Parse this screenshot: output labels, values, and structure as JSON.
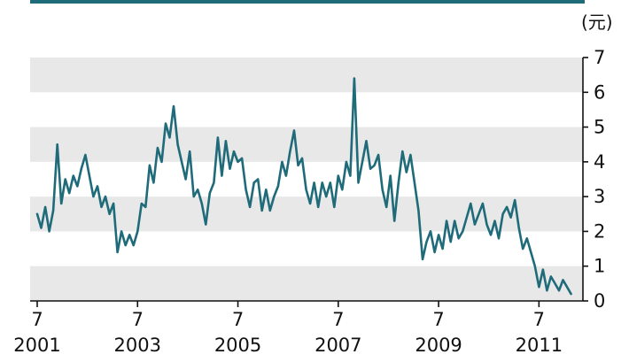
{
  "chart_data": {
    "type": "line",
    "unit": "(元)",
    "ylim": [
      0,
      7
    ],
    "y_ticks": [
      0,
      1,
      2,
      3,
      4,
      5,
      6,
      7
    ],
    "x_range": [
      2001.5,
      2012.2
    ],
    "x_ticks": [
      {
        "month": "7",
        "year": "2001",
        "x": 2001.5
      },
      {
        "month": "7",
        "year": "2003",
        "x": 2003.5
      },
      {
        "month": "7",
        "year": "2005",
        "x": 2005.5
      },
      {
        "month": "7",
        "year": "2007",
        "x": 2007.5
      },
      {
        "month": "7",
        "year": "2009",
        "x": 2009.5
      },
      {
        "month": "7",
        "year": "2011",
        "x": 2011.5
      }
    ],
    "grid": "alternating horizontal bands",
    "colors": {
      "line": "#1f6b7a",
      "band": "#e8e8e8",
      "top_rule": "#1f6b7a",
      "axis": "#111111"
    },
    "series": [
      {
        "x": [
          2001.5,
          2001.58,
          2001.66,
          2001.74,
          2001.82,
          2001.9,
          2001.98,
          2002.06,
          2002.14,
          2002.22,
          2002.3,
          2002.38,
          2002.46,
          2002.54,
          2002.62,
          2002.7,
          2002.78,
          2002.86,
          2002.94,
          2003.02,
          2003.1,
          2003.18,
          2003.26,
          2003.34,
          2003.42,
          2003.5,
          2003.58,
          2003.66,
          2003.74,
          2003.82,
          2003.9,
          2003.98,
          2004.06,
          2004.14,
          2004.22,
          2004.3,
          2004.38,
          2004.46,
          2004.54,
          2004.62,
          2004.7,
          2004.78,
          2004.86,
          2004.94,
          2005.02,
          2005.1,
          2005.18,
          2005.26,
          2005.34,
          2005.42,
          2005.5,
          2005.58,
          2005.66,
          2005.74,
          2005.82,
          2005.9,
          2005.98,
          2006.06,
          2006.14,
          2006.22,
          2006.3,
          2006.38,
          2006.46,
          2006.54,
          2006.62,
          2006.7,
          2006.78,
          2006.86,
          2006.94,
          2007.02,
          2007.1,
          2007.18,
          2007.26,
          2007.34,
          2007.42,
          2007.5,
          2007.58,
          2007.66,
          2007.74,
          2007.82,
          2007.9,
          2007.98,
          2008.06,
          2008.14,
          2008.22,
          2008.3,
          2008.38,
          2008.46,
          2008.54,
          2008.62,
          2008.7,
          2008.78,
          2008.86,
          2008.94,
          2009.02,
          2009.1,
          2009.18,
          2009.26,
          2009.34,
          2009.42,
          2009.5,
          2009.58,
          2009.66,
          2009.74,
          2009.82,
          2009.9,
          2009.98,
          2010.06,
          2010.14,
          2010.22,
          2010.3,
          2010.38,
          2010.46,
          2010.54,
          2010.62,
          2010.7,
          2010.78,
          2010.86,
          2010.94,
          2011.02,
          2011.1,
          2011.18,
          2011.26,
          2011.34,
          2011.42,
          2011.5,
          2011.58,
          2011.66,
          2011.74,
          2011.82,
          2011.9,
          2011.98,
          2012.06,
          2012.14
        ],
        "values": [
          2.5,
          2.1,
          2.7,
          2.0,
          2.6,
          4.5,
          2.8,
          3.5,
          3.1,
          3.6,
          3.3,
          3.8,
          4.2,
          3.6,
          3.0,
          3.3,
          2.7,
          3.0,
          2.5,
          2.8,
          1.4,
          2.0,
          1.6,
          1.9,
          1.6,
          2.0,
          2.8,
          2.7,
          3.9,
          3.4,
          4.4,
          4.0,
          5.1,
          4.7,
          5.6,
          4.5,
          4.0,
          3.5,
          4.3,
          3.0,
          3.2,
          2.8,
          2.2,
          3.1,
          3.4,
          4.7,
          3.6,
          4.6,
          3.8,
          4.3,
          4.0,
          4.1,
          3.2,
          2.7,
          3.4,
          3.5,
          2.6,
          3.2,
          2.6,
          3.0,
          3.3,
          4.0,
          3.6,
          4.3,
          4.9,
          3.9,
          4.1,
          3.2,
          2.8,
          3.4,
          2.7,
          3.4,
          3.0,
          3.4,
          2.7,
          3.6,
          3.2,
          4.0,
          3.6,
          6.4,
          3.4,
          4.0,
          4.6,
          3.8,
          3.9,
          4.2,
          3.2,
          2.7,
          3.6,
          2.3,
          3.4,
          4.3,
          3.7,
          4.2,
          3.4,
          2.6,
          1.2,
          1.7,
          2.0,
          1.4,
          1.9,
          1.5,
          2.3,
          1.7,
          2.3,
          1.8,
          2.0,
          2.4,
          2.8,
          2.2,
          2.5,
          2.8,
          2.2,
          1.9,
          2.3,
          1.8,
          2.5,
          2.7,
          2.4,
          2.9,
          2.1,
          1.5,
          1.8,
          1.4,
          1.0,
          0.4,
          0.9,
          0.3,
          0.7,
          0.5,
          0.3,
          0.6,
          0.4,
          0.2
        ]
      }
    ]
  }
}
